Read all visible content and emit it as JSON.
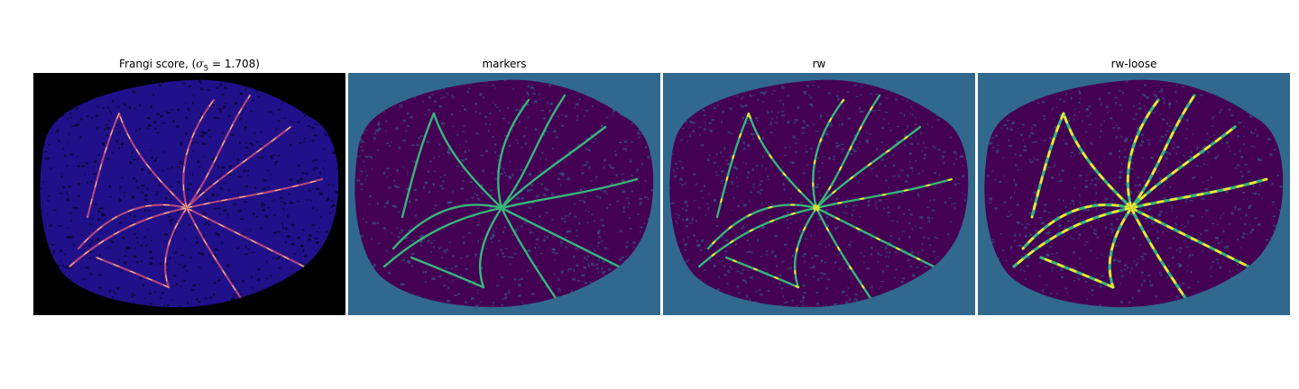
{
  "panels": [
    {
      "id": "frangi",
      "title_text": "Frangi score, (",
      "title_math": "σ",
      "title_sub": "5",
      "title_tail": " = 1.708)",
      "background_color": "#000000",
      "cell_color": "#20108a",
      "vessel_color": "#b2457f",
      "highlight_color": "#f6d889"
    },
    {
      "id": "markers",
      "title": "markers",
      "background_color": "#31688e",
      "cell_color": "#440154",
      "vessel_color": "#35b779"
    },
    {
      "id": "rw",
      "title": "rw",
      "background_color": "#31688e",
      "cell_color": "#440154",
      "vessel_color": "#35b779",
      "highlight_color": "#fde725"
    },
    {
      "id": "rw-loose",
      "title": "rw-loose",
      "background_color": "#31688e",
      "cell_color": "#440154",
      "vessel_color": "#35b779",
      "highlight_color": "#fde725"
    }
  ],
  "legend": "none",
  "axes": "hidden"
}
